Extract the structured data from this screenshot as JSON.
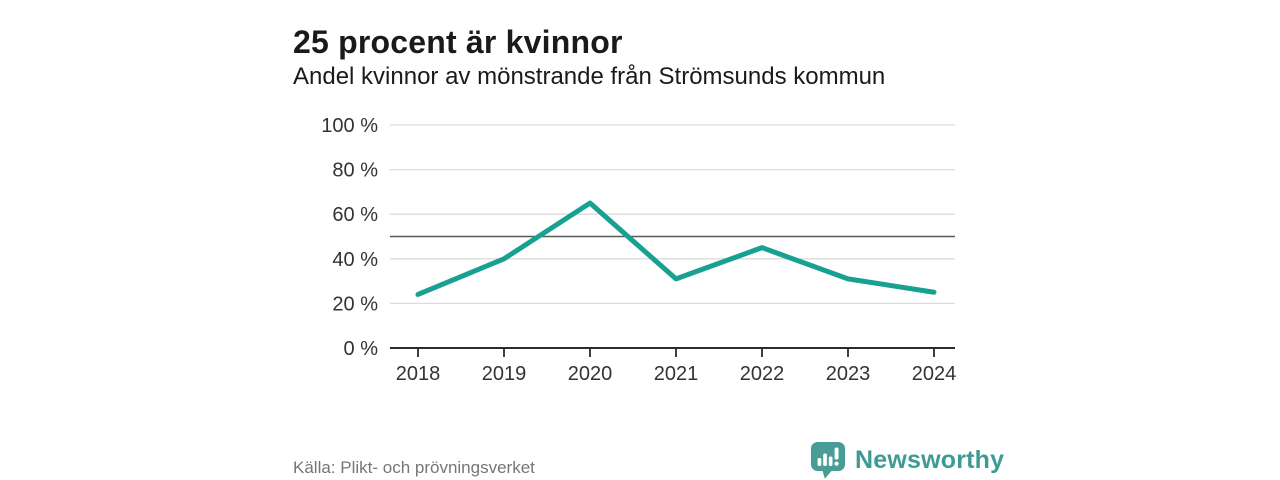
{
  "header": {
    "title": "25 procent är kvinnor",
    "subtitle": "Andel kvinnor av mönstrande från Strömsunds kommun"
  },
  "chart_data": {
    "type": "line",
    "categories": [
      "2018",
      "2019",
      "2020",
      "2021",
      "2022",
      "2023",
      "2024"
    ],
    "series": [
      {
        "name": "Andel kvinnor av mönstrande",
        "values": [
          24,
          40,
          65,
          31,
          45,
          31,
          25
        ]
      }
    ],
    "unit": "%",
    "ylim": [
      0,
      100
    ],
    "y_ticks": [
      0,
      20,
      40,
      60,
      80,
      100
    ],
    "y_tick_suffix": " %",
    "reference_line_value": 50,
    "grid": true,
    "legend": "none",
    "line_color": "#18a093",
    "gridline_color": "#dcdcdc",
    "reference_line_color": "#595959",
    "axis_color": "#2b2b2b",
    "label_color": "#333333"
  },
  "footer": {
    "source": "Källa: Plikt- och prövningsverket",
    "logo_text": "Newsworthy",
    "logo_text_color": "#3d9b94",
    "logo_icon": "bar-chart-speech-bubble-icon",
    "logo_icon_color": "#4a9d97",
    "logo_icon_glyph_color": "#ffffff"
  }
}
